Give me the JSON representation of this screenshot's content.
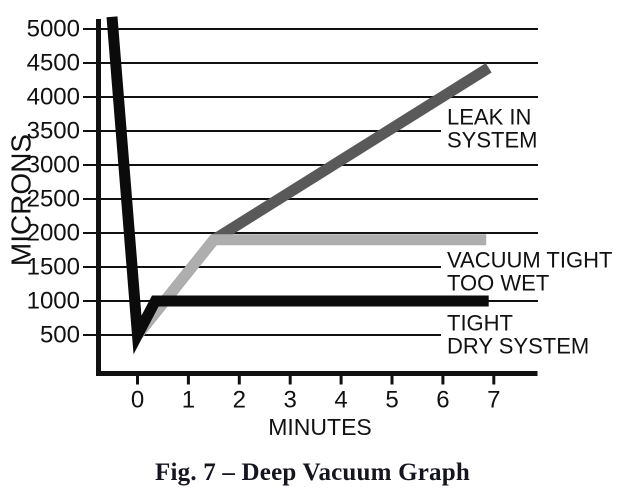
{
  "figure": {
    "caption": "Fig. 7 – Deep Vacuum Graph"
  },
  "chart_data": {
    "type": "line",
    "title": "Deep Vacuum Graph",
    "xlabel": "MINUTES",
    "ylabel": "MICRONS",
    "xlim": [
      -0.8,
      7.9
    ],
    "ylim": [
      0,
      5200
    ],
    "grid": true,
    "legend_position": "inline-right-annotations",
    "x_ticks": [
      0,
      1,
      2,
      3,
      4,
      5,
      6,
      7
    ],
    "y_ticks": [
      500,
      1000,
      1500,
      2000,
      2500,
      3000,
      3500,
      4000,
      4500,
      5000
    ],
    "colors": {
      "axis": "#111111",
      "grid": "#111111",
      "text": "#111111",
      "background": "#ffffff"
    },
    "series": [
      {
        "name": "LEAK IN SYSTEM",
        "color": "#595959",
        "points": [
          [
            0,
            500
          ],
          [
            1.5,
            1900
          ],
          [
            6.9,
            4430
          ]
        ],
        "label_lines": [
          "LEAK IN",
          "SYSTEM"
        ]
      },
      {
        "name": "VACUUM TIGHT TOO WET",
        "color": "#aeaeae",
        "points": [
          [
            0,
            500
          ],
          [
            1.5,
            1900
          ],
          [
            6.85,
            1900
          ]
        ],
        "label_lines": [
          "VACUUM TIGHT",
          "TOO WET"
        ]
      },
      {
        "name": "TIGHT DRY SYSTEM",
        "color": "#0b0b0b",
        "points": [
          [
            -0.5,
            5180
          ],
          [
            0,
            500
          ],
          [
            0.35,
            1000
          ],
          [
            6.9,
            1000
          ]
        ],
        "label_lines": [
          "TIGHT",
          "DRY SYSTEM"
        ]
      }
    ]
  }
}
